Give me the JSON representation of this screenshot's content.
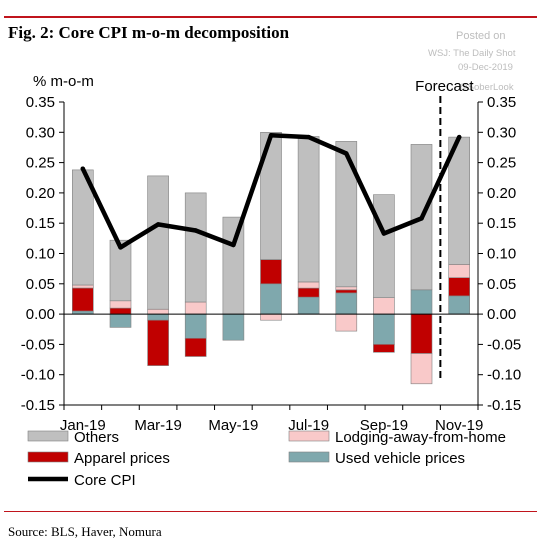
{
  "header": {
    "title": "Fig. 2:  Core CPI m-o-m decomposition"
  },
  "watermark": {
    "line1": "Posted on",
    "line2": "WSJ: The Daily Shot",
    "line3": "09-Dec-2019",
    "line4": "@SoberLook"
  },
  "footer": {
    "source": "Source: BLS, Haver, Nomura"
  },
  "chart_data": {
    "type": "bar",
    "stacked": true,
    "ylabel": "% m-o-m",
    "ylim": [
      -0.15,
      0.35
    ],
    "yticks": [
      "0.35",
      "0.30",
      "0.25",
      "0.20",
      "0.15",
      "0.10",
      "0.05",
      "0.00",
      "-0.05",
      "-0.10",
      "-0.15"
    ],
    "ytick_values": [
      0.35,
      0.3,
      0.25,
      0.2,
      0.15,
      0.1,
      0.05,
      0.0,
      -0.05,
      -0.1,
      -0.15
    ],
    "categories": [
      "Jan-19",
      "Feb-19",
      "Mar-19",
      "Apr-19",
      "May-19",
      "Jun-19",
      "Jul-19",
      "Aug-19",
      "Sep-19",
      "Oct-19",
      "Nov-19"
    ],
    "xtick_labels": [
      "Jan-19",
      "Mar-19",
      "May-19",
      "Jul-19",
      "Sep-19",
      "Nov-19"
    ],
    "forecast_label": "Forecast",
    "forecast_start": "Nov-19",
    "series": [
      {
        "name": "Others",
        "color": "#bfbfbf",
        "values": [
          0.19,
          0.1,
          0.22,
          0.18,
          0.16,
          0.21,
          0.24,
          0.24,
          0.17,
          0.24,
          0.21
        ]
      },
      {
        "name": "Lodging-away-from-home",
        "color": "#f9c9c9",
        "values": [
          0.005,
          0.012,
          0.008,
          0.02,
          0.0,
          0.0,
          0.01,
          0.005,
          0.027,
          -0.05,
          0.022
        ]
      },
      {
        "name": "Apparel prices",
        "color": "#c00000",
        "values": [
          0.038,
          0.01,
          -0.075,
          -0.03,
          0.0,
          0.04,
          0.015,
          0.005,
          -0.013,
          -0.065,
          0.03
        ]
      },
      {
        "name": "Used vehicle prices",
        "color": "#7fa8ad",
        "values": [
          0.005,
          -0.022,
          -0.01,
          -0.04,
          -0.043,
          0.05,
          0.028,
          0.035,
          -0.05,
          0.04,
          0.03
        ]
      }
    ],
    "extra_negative": [
      {
        "category": "Jun-19",
        "series": "Lodging-away-from-home",
        "value": -0.01
      },
      {
        "category": "Aug-19",
        "series": "Lodging-away-from-home",
        "value": -0.028
      }
    ],
    "line": {
      "name": "Core CPI",
      "color": "#000000",
      "values": [
        0.24,
        0.11,
        0.148,
        0.138,
        0.114,
        0.295,
        0.292,
        0.265,
        0.133,
        0.158,
        0.292
      ]
    },
    "legend": [
      "Others",
      "Lodging-away-from-home",
      "Apparel prices",
      "Used vehicle prices",
      "Core CPI"
    ],
    "legend_position": "bottom",
    "grid": false
  }
}
